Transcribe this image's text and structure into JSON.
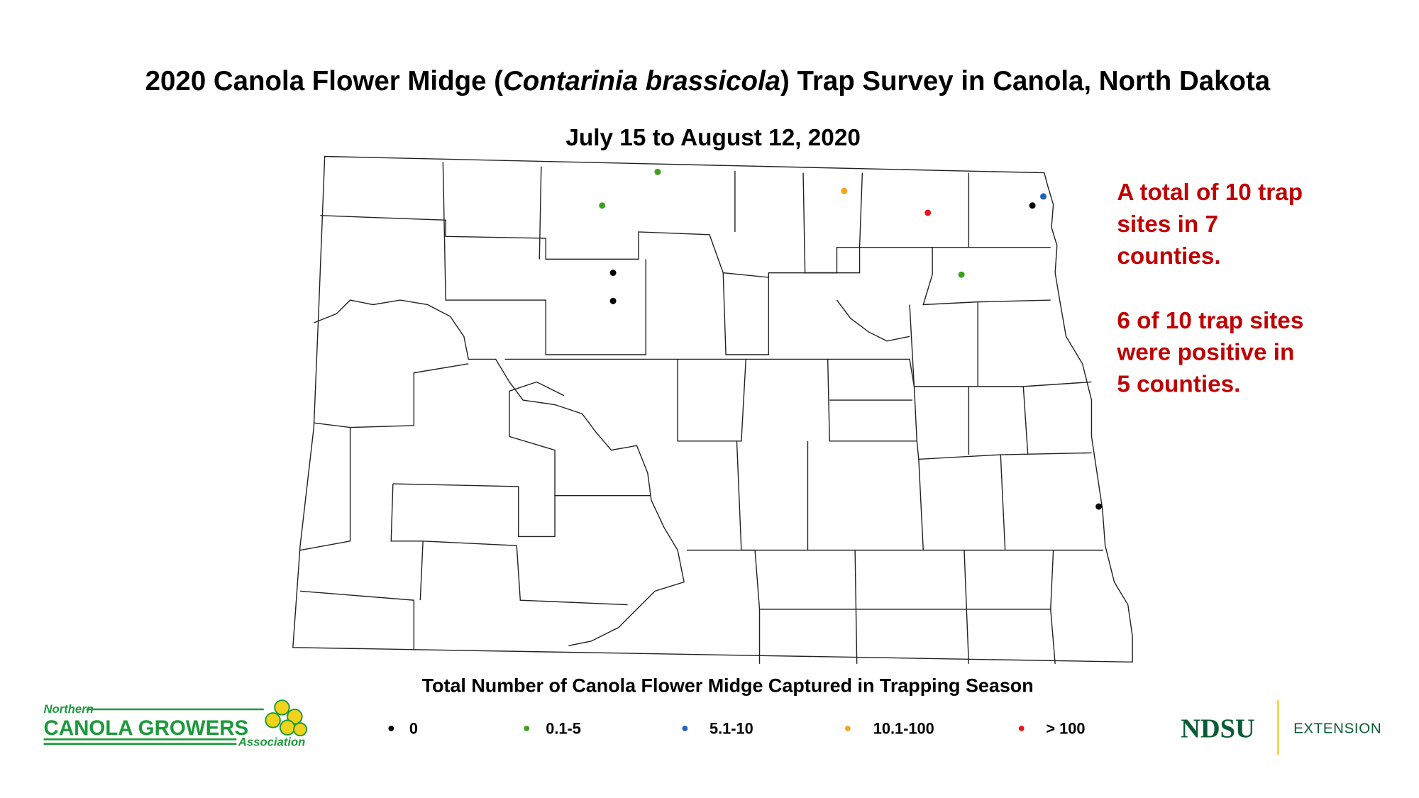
{
  "header": {
    "title_start": "2020 Canola Flower Midge (",
    "title_italic": "Contarinia brassicola",
    "title_end": ") Trap Survey in Canola, North Dakota",
    "subtitle": "July 15 to August 12, 2020"
  },
  "notes": [
    {
      "lines": [
        "A total of 10 trap",
        "sites in 7",
        "counties."
      ]
    },
    {
      "lines": [
        "6 of 10 trap sites",
        "were positive in",
        "5 counties."
      ]
    }
  ],
  "legend": {
    "title": "Total Number of Canola Flower Midge Captured in Trapping Season",
    "items": [
      {
        "label": "0",
        "color": "#000000"
      },
      {
        "label": "0.1-5",
        "color": "#3aa21b"
      },
      {
        "label": "5.1-10",
        "color": "#1f5fbf"
      },
      {
        "label": "10.1-100",
        "color": "#f5a31a"
      },
      {
        "label": "> 100",
        "color": "#e8141b"
      }
    ]
  },
  "logos": {
    "ncga_top": "Northern",
    "ncga_main": "CANOLA GROWERS",
    "ncga_bottom": "Association",
    "ndsu": "NDSU",
    "extension": "EXTENSION"
  }
}
